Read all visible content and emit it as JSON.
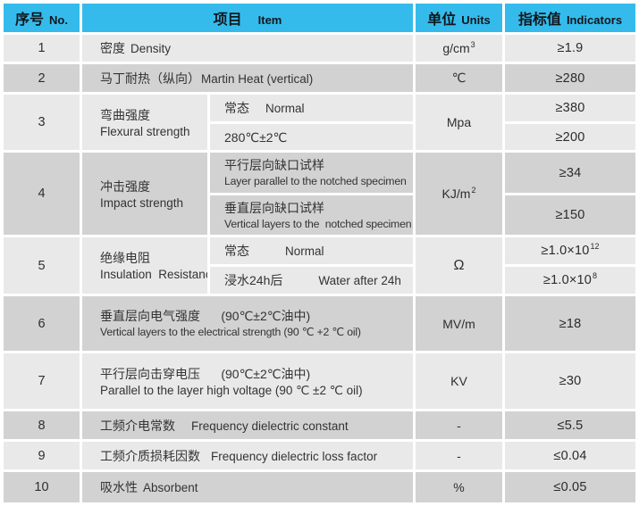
{
  "colors": {
    "header_bg": "#34bbec",
    "row_light": "#e9e9e9",
    "row_dark": "#d2d2d2",
    "border": "#ffffff"
  },
  "header": {
    "no_zh": "序号",
    "no_en": "No.",
    "item_zh": "项目",
    "item_en": "Item",
    "unit_zh": "单位",
    "unit_en": "Units",
    "ind_zh": "指标值",
    "ind_en": "Indicators"
  },
  "rows": {
    "r1": {
      "no": "1",
      "item_zh": "密度",
      "item_en": "Density",
      "unit": "g/cm",
      "unit_sup": "3",
      "value": "≥1.9"
    },
    "r2": {
      "no": "2",
      "item_zh": "马丁耐热（纵向）",
      "item_en": "Martin Heat (vertical)",
      "unit": "℃",
      "value": "≥280"
    },
    "r3": {
      "no": "3",
      "label_zh": "弯曲强度",
      "label_en": "Flexural strength",
      "sub1_zh": "常态",
      "sub1_en": "Normal",
      "sub2_zh": "280℃±2℃",
      "unit": "Mpa",
      "value1": "≥380",
      "value2": "≥200"
    },
    "r4": {
      "no": "4",
      "label_zh": "冲击强度",
      "label_en": "Impact strength",
      "sub1_zh": "平行层向缺口试样",
      "sub1_en": "Layer parallel to the notched specimen",
      "sub2_zh": "垂直层向缺口试样",
      "sub2_en": "Vertical layers to the  notched specimen",
      "unit": "KJ/m",
      "unit_sup": "2",
      "value1": "≥34",
      "value2": "≥150"
    },
    "r5": {
      "no": "5",
      "label_zh": "绝缘电阻",
      "label_en": "Insulation  Resistance",
      "sub1_zh": "常态",
      "sub1_en": "Normal",
      "sub2_zh": "浸水24h后",
      "sub2_en": "Water after 24h",
      "unit": "Ω",
      "value1": "≥1.0×10",
      "value1_sup": "12",
      "value2": "≥1.0×10",
      "value2_sup": "8"
    },
    "r6": {
      "no": "6",
      "item_zh": "垂直层向电气强度      (90℃±2℃油中)",
      "item_en": "Vertical layers to the electrical strength (90 ℃ +2 ℃ oil)",
      "unit": "MV/m",
      "value": "≥18"
    },
    "r7": {
      "no": "7",
      "item_zh": "平行层向击穿电压      (90℃±2℃油中)",
      "item_en": "Parallel to the layer high voltage (90 ℃ ±2 ℃ oil)",
      "unit": "KV",
      "value": "≥30"
    },
    "r8": {
      "no": "8",
      "item_zh": "工频介电常数",
      "item_en": "Frequency dielectric constant",
      "unit": "-",
      "value": "≤5.5"
    },
    "r9": {
      "no": "9",
      "item_zh": "工频介质损耗因数",
      "item_en": "Frequency dielectric loss factor",
      "unit": "-",
      "value": "≤0.04"
    },
    "r10": {
      "no": "10",
      "item_zh": "吸水性",
      "item_en": "Absorbent",
      "unit": "%",
      "value": "≤0.05"
    }
  }
}
